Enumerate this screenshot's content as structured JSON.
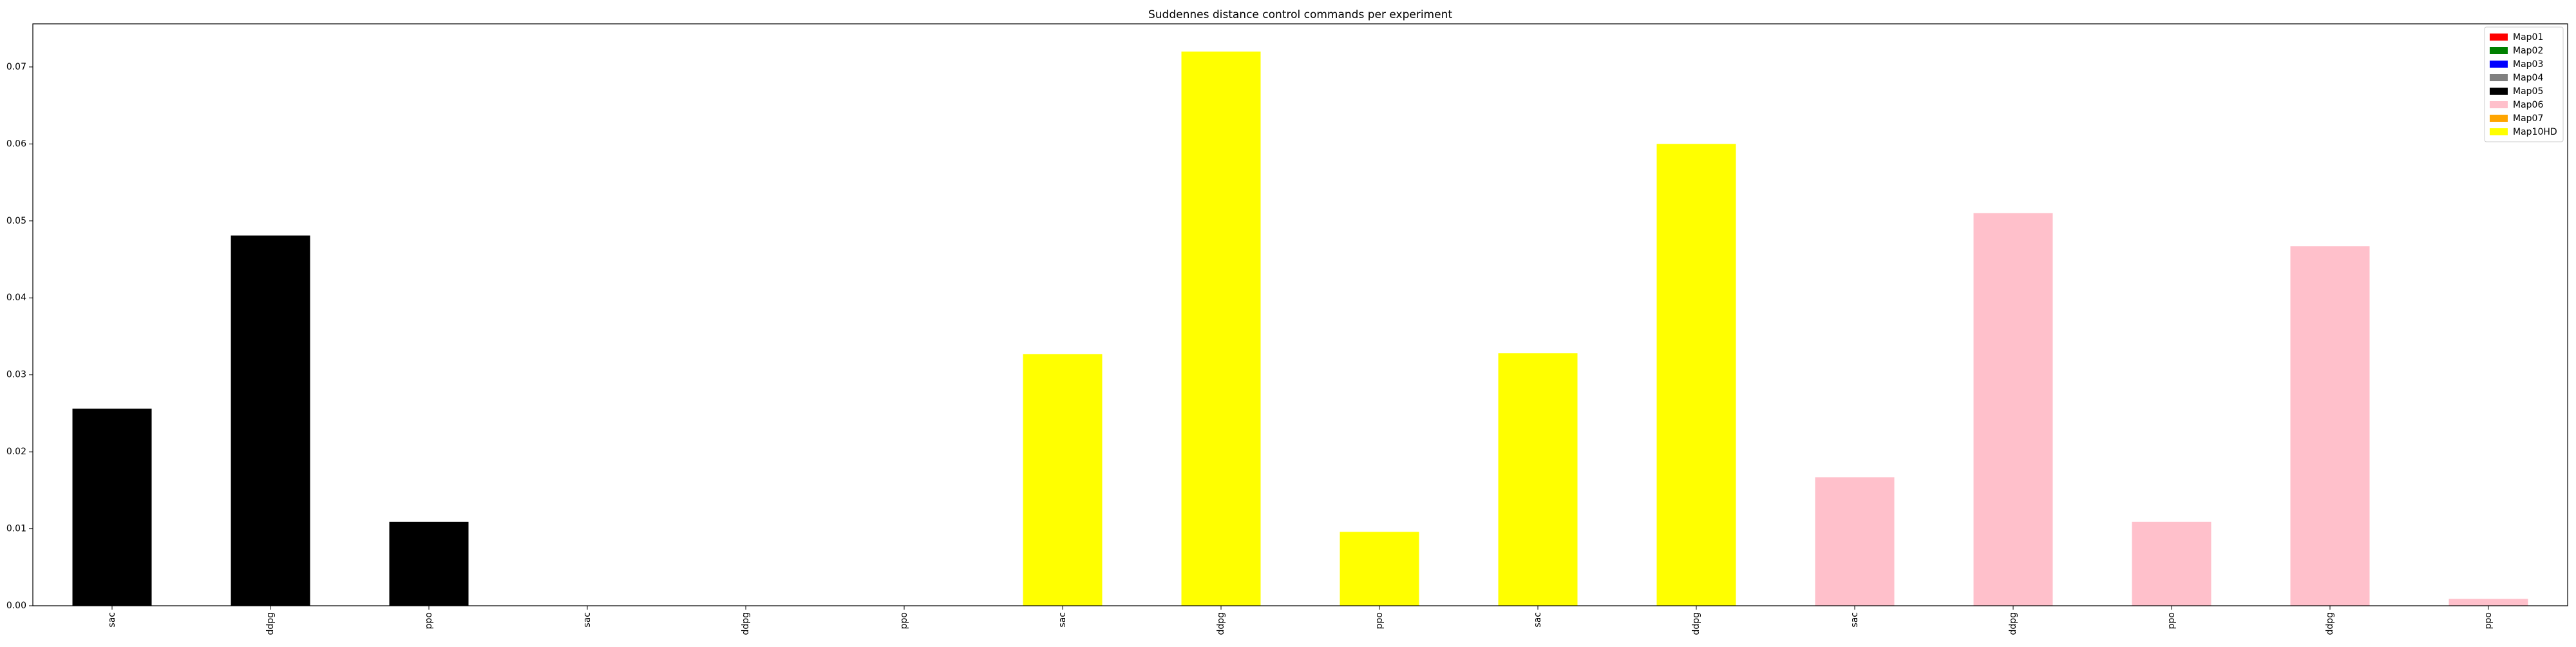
{
  "chart_data": {
    "type": "bar",
    "title": "Suddennes distance control commands per experiment",
    "xlabel": "",
    "ylabel": "",
    "ylim": [
      0,
      0.0756
    ],
    "yticks": [
      0.0,
      0.01,
      0.02,
      0.03,
      0.04,
      0.05,
      0.06,
      0.07
    ],
    "ytick_labels": [
      "0.00",
      "0.01",
      "0.02",
      "0.03",
      "0.04",
      "0.05",
      "0.06",
      "0.07"
    ],
    "categories": [
      "sac",
      "ddpg",
      "ppo",
      "sac",
      "ddpg",
      "ppo",
      "sac",
      "ddpg",
      "ppo",
      "sac",
      "ddpg",
      "sac",
      "ddpg",
      "ppo",
      "ddpg",
      "ppo"
    ],
    "values": [
      0.0256,
      0.0481,
      0.0109,
      0.0,
      0.0,
      0.0,
      0.0327,
      0.072,
      0.0096,
      0.0328,
      0.06,
      0.0167,
      0.051,
      0.0109,
      0.0467,
      0.0009
    ],
    "bar_colors": [
      "#000000",
      "#000000",
      "#000000",
      "#000000",
      "#000000",
      "#000000",
      "#ffff00",
      "#ffff00",
      "#ffff00",
      "#ffff00",
      "#ffff00",
      "#ffc0cb",
      "#ffc0cb",
      "#ffc0cb",
      "#ffc0cb",
      "#ffc0cb"
    ],
    "legend": {
      "placement": "top-right",
      "entries": [
        {
          "label": "Map01",
          "color": "#ff0000"
        },
        {
          "label": "Map02",
          "color": "#008000"
        },
        {
          "label": "Map03",
          "color": "#0000ff"
        },
        {
          "label": "Map04",
          "color": "#808080"
        },
        {
          "label": "Map05",
          "color": "#000000"
        },
        {
          "label": "Map06",
          "color": "#ffc0cb"
        },
        {
          "label": "Map07",
          "color": "#ffa500"
        },
        {
          "label": "Map10HD",
          "color": "#ffff00"
        }
      ]
    },
    "grid": false
  }
}
